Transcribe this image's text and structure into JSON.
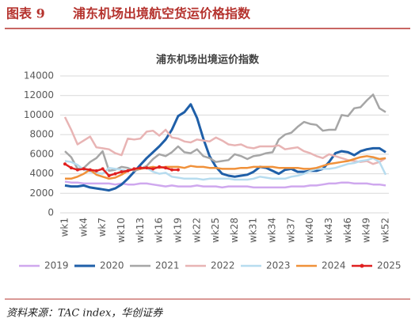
{
  "header": {
    "label": "图表 9",
    "title": "浦东机场出境航空货运价格指数"
  },
  "source": "资料来源：TAC index，华创证券",
  "chart_data": {
    "type": "line",
    "title": "浦东机场出境运价指数",
    "categories": [
      "wk1",
      null,
      null,
      "wk4",
      null,
      null,
      "wk7",
      null,
      null,
      "wk10",
      null,
      null,
      "wk13",
      null,
      null,
      "wk16",
      null,
      null,
      "wk19",
      null,
      null,
      "wk22",
      null,
      null,
      "wk25",
      null,
      null,
      "wk28",
      null,
      null,
      "wk31",
      null,
      null,
      "wk34",
      null,
      null,
      "wk37",
      null,
      null,
      "wk40",
      null,
      null,
      "wk43",
      null,
      null,
      "wk46",
      null,
      null,
      "wk49",
      null,
      null,
      "wk52"
    ],
    "ylim": [
      0,
      14000
    ],
    "yticks": [
      0,
      2000,
      4000,
      6000,
      8000,
      10000,
      12000,
      14000
    ],
    "grid": true,
    "legend": "bottom",
    "series": [
      {
        "name": "2019",
        "color": "#cfa8ee",
        "values": [
          3200,
          3100,
          3100,
          3000,
          3000,
          3000,
          3000,
          3000,
          2900,
          3000,
          2900,
          2900,
          3000,
          3000,
          2900,
          2800,
          2700,
          2800,
          2700,
          2700,
          2700,
          2800,
          2700,
          2700,
          2700,
          2600,
          2700,
          2700,
          2700,
          2700,
          2600,
          2600,
          2600,
          2600,
          2600,
          2600,
          2700,
          2700,
          2700,
          2800,
          2800,
          2900,
          3000,
          3000,
          3100,
          3100,
          3000,
          3000,
          3000,
          2900,
          2900,
          2800
        ]
      },
      {
        "name": "2020",
        "color": "#1f5fa8",
        "values": [
          2800,
          2700,
          2700,
          2800,
          2600,
          2500,
          2400,
          2300,
          2500,
          2900,
          3500,
          4200,
          4900,
          5600,
          6200,
          6800,
          7500,
          8500,
          9900,
          10300,
          11100,
          9700,
          7600,
          5800,
          4700,
          4000,
          3800,
          3700,
          3800,
          3900,
          4200,
          4700,
          4600,
          4300,
          4000,
          4400,
          4500,
          4200,
          4200,
          4300,
          4300,
          4500,
          5200,
          6100,
          6300,
          6200,
          5900,
          6300,
          6500,
          6600,
          6600,
          6200
        ]
      },
      {
        "name": "2021",
        "color": "#a6a6a6",
        "values": [
          6300,
          5700,
          4500,
          4600,
          5200,
          5600,
          6300,
          4300,
          4400,
          4700,
          4600,
          4300,
          4500,
          4800,
          5500,
          6000,
          5800,
          6200,
          6800,
          6200,
          6100,
          6500,
          5800,
          5600,
          5200,
          5300,
          5400,
          6000,
          5800,
          5500,
          5800,
          5900,
          6100,
          6200,
          7500,
          8000,
          8200,
          8800,
          9300,
          9100,
          9000,
          8400,
          8500,
          8500,
          10000,
          9900,
          10700,
          10800,
          11500,
          12100,
          10700,
          10300
        ]
      },
      {
        "name": "2022",
        "color": "#e8b4b4",
        "values": [
          9800,
          8500,
          7000,
          7400,
          7800,
          6700,
          6600,
          6500,
          6100,
          5900,
          7600,
          7500,
          7600,
          8300,
          8400,
          7900,
          8500,
          7700,
          7600,
          7300,
          7200,
          7500,
          7400,
          7300,
          7700,
          7400,
          7000,
          6900,
          7000,
          6700,
          6600,
          6800,
          6800,
          6800,
          6900,
          6500,
          6600,
          6700,
          6300,
          6100,
          5800,
          5600,
          6000,
          5800,
          5600,
          5400,
          5300,
          5200,
          5300,
          5000,
          5200,
          5600
        ]
      },
      {
        "name": "2023",
        "color": "#b7dcef",
        "values": [
          5300,
          5200,
          4900,
          4400,
          4200,
          4100,
          4000,
          4600,
          4500,
          4400,
          4300,
          4500,
          4500,
          4600,
          4200,
          4000,
          4100,
          3700,
          3600,
          3500,
          3500,
          3500,
          3400,
          3500,
          3500,
          3500,
          3500,
          3400,
          3400,
          3400,
          3500,
          3700,
          3600,
          3500,
          3500,
          3500,
          3700,
          3800,
          4000,
          4300,
          4500,
          4500,
          4500,
          4600,
          4800,
          5000,
          5100,
          5300,
          5400,
          5600,
          5200,
          3900
        ]
      },
      {
        "name": "2024",
        "color": "#f0913a",
        "values": [
          3500,
          3500,
          3700,
          4000,
          4400,
          3900,
          3700,
          3500,
          3600,
          3900,
          4300,
          4500,
          4500,
          4600,
          4700,
          4600,
          4700,
          4700,
          4700,
          4600,
          4800,
          4700,
          4700,
          4600,
          4600,
          4500,
          4500,
          4500,
          4600,
          4600,
          4700,
          4700,
          4700,
          4700,
          4600,
          4600,
          4600,
          4600,
          4500,
          4500,
          4600,
          4800,
          5000,
          5100,
          5200,
          5300,
          5500,
          5700,
          5800,
          5700,
          5500,
          5600
        ]
      },
      {
        "name": "2025",
        "color": "#e02020",
        "marker": "circle",
        "values": [
          5000,
          4600,
          4400,
          4500,
          4400,
          4300,
          4500,
          3800,
          4000,
          4200,
          4300,
          4500,
          4600,
          4600,
          4500,
          4700,
          4600,
          4400,
          4400,
          null,
          null,
          null,
          null,
          null,
          null,
          null,
          null,
          null,
          null,
          null,
          null,
          null,
          null,
          null,
          null,
          null,
          null,
          null,
          null,
          null,
          null,
          null,
          null,
          null,
          null,
          null,
          null,
          null,
          null,
          null,
          null,
          null
        ]
      }
    ]
  }
}
